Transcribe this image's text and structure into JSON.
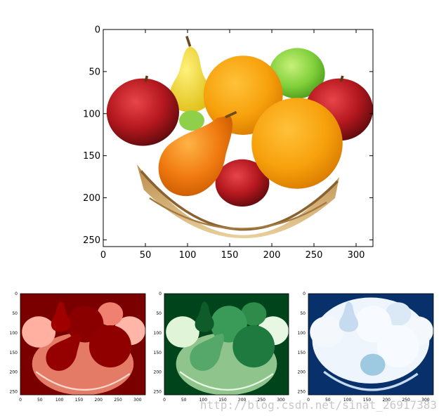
{
  "main_plot": {
    "x_ticks": [
      "0",
      "50",
      "100",
      "150",
      "200",
      "250",
      "300"
    ],
    "y_ticks": [
      "0",
      "50",
      "100",
      "150",
      "200",
      "250"
    ]
  },
  "channels": [
    {
      "name": "red",
      "x_ticks": [
        "0",
        "50",
        "100",
        "150",
        "200",
        "250",
        "300"
      ],
      "y_ticks": [
        "0",
        "50",
        "100",
        "150",
        "200",
        "250"
      ]
    },
    {
      "name": "green",
      "x_ticks": [
        "0",
        "50",
        "100",
        "150",
        "200",
        "250",
        "300"
      ],
      "y_ticks": [
        "0",
        "50",
        "100",
        "150",
        "200",
        "250"
      ]
    },
    {
      "name": "blue",
      "x_ticks": [
        "0",
        "50",
        "100",
        "150",
        "200",
        "250",
        "300"
      ],
      "y_ticks": [
        "0",
        "50",
        "100",
        "150",
        "200",
        "250"
      ]
    }
  ],
  "watermark": "http://blog.csdn.net/sinat_26917383",
  "colors": {
    "red_map": "#8b0000",
    "green_map": "#00441b",
    "blue_map": "#08306b"
  }
}
